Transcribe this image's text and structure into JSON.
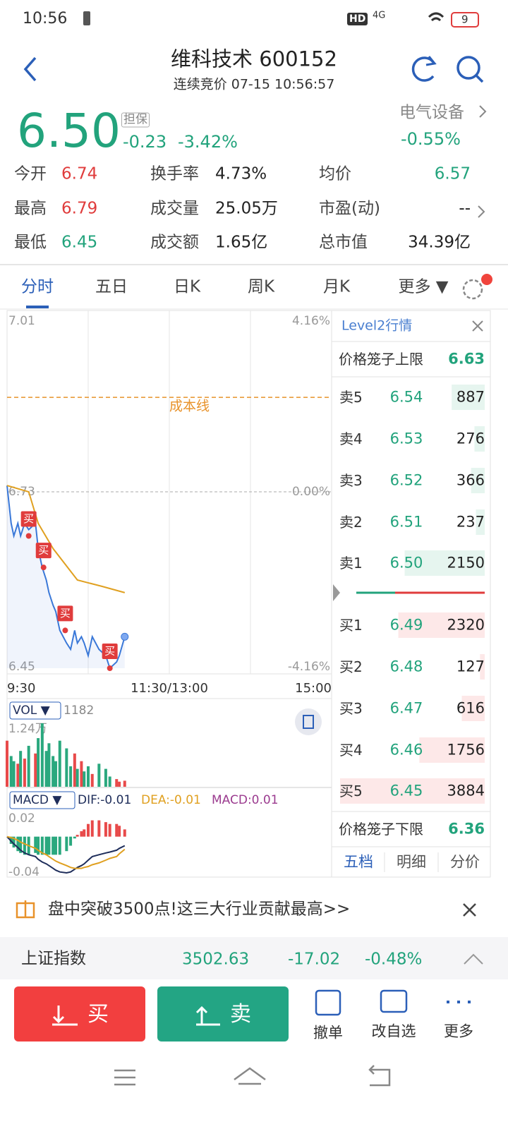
{
  "status_bar": {
    "time": "10:56",
    "hd": "HD",
    "network": "4G",
    "battery": "9"
  },
  "header": {
    "title": "维科技术 600152",
    "subtitle": "连续竞价 07-15 10:56:57"
  },
  "quote": {
    "price": "6.50",
    "badge": "担保",
    "change": "-0.23",
    "change_pct": "-3.42%",
    "sector": "电气设备",
    "sector_change": "-0.55%"
  },
  "stats": [
    [
      {
        "label": "今开",
        "value": "6.74",
        "color": "#e03c3c"
      },
      {
        "label": "换手率",
        "value": "4.73%"
      },
      {
        "label": "均价",
        "value": "6.57",
        "color": "#22a37c"
      }
    ],
    [
      {
        "label": "最高",
        "value": "6.79",
        "color": "#e03c3c"
      },
      {
        "label": "成交量",
        "value": "25.05万"
      },
      {
        "label": "市盈(动)",
        "value": "--"
      }
    ],
    [
      {
        "label": "最低",
        "value": "6.45",
        "color": "#22a37c"
      },
      {
        "label": "成交额",
        "value": "1.65亿"
      },
      {
        "label": "总市值",
        "value": "34.39亿"
      }
    ]
  ],
  "tabs": [
    "分时",
    "五日",
    "日K",
    "周K",
    "月K",
    "更多 ▼"
  ],
  "active_tab": 0,
  "chart_data": [
    {
      "type": "line",
      "xlim": [
        0,
        240
      ],
      "xticks": [
        {
          "value": 0,
          "label": "9:30"
        },
        {
          "value": 120,
          "label": "11:30/13:00"
        },
        {
          "value": 240,
          "label": "15:00"
        }
      ],
      "xgrid": [
        60,
        120,
        180
      ],
      "ylim": [
        6.45,
        7.01
      ],
      "yticks": [
        6.45,
        6.73,
        7.01
      ],
      "y2lim": [
        -4.16,
        4.16
      ],
      "y2ticks": [
        {
          "value": -4.16,
          "label": "-4.16%"
        },
        {
          "value": 0,
          "label": "0.00%"
        },
        {
          "value": 4.16,
          "label": "4.16%"
        }
      ],
      "series": [
        {
          "color": "#3a78d8",
          "x": [
            0,
            3,
            5,
            8,
            10,
            13,
            16,
            21,
            23,
            26,
            29,
            31,
            34,
            36,
            39,
            44,
            47,
            50,
            52,
            55,
            57,
            60,
            63,
            68,
            73,
            76,
            81,
            83,
            87
          ],
          "values": [
            6.74,
            6.68,
            6.66,
            6.68,
            6.66,
            6.68,
            6.67,
            6.68,
            6.64,
            6.61,
            6.59,
            6.57,
            6.55,
            6.54,
            6.51,
            6.49,
            6.48,
            6.51,
            6.49,
            6.5,
            6.49,
            6.47,
            6.5,
            6.48,
            6.47,
            6.45,
            6.46,
            6.47,
            6.5
          ]
        },
        {
          "color": "#e0a020",
          "x": [
            0,
            16,
            23,
            34,
            52,
            70,
            87
          ],
          "values": [
            6.74,
            6.73,
            6.68,
            6.64,
            6.59,
            6.58,
            6.57
          ]
        }
      ],
      "cost_line": {
        "label": "成本线",
        "value": 6.88,
        "color": "#e8922a"
      },
      "markers": [
        {
          "label": "买",
          "x": 16,
          "value": 6.66
        },
        {
          "label": "买",
          "x": 27,
          "value": 6.61
        },
        {
          "label": "买",
          "x": 43,
          "value": 6.51
        },
        {
          "label": "买",
          "x": 76,
          "value": 6.45
        }
      ]
    },
    {
      "type": "bar",
      "indicator": "VOL ▼",
      "current": 1182,
      "xlim": [
        0,
        240
      ],
      "ylim": [
        0,
        12400
      ],
      "yticks": [
        {
          "value": 12400,
          "label": "1.24万"
        }
      ],
      "up_color": "#e84a4a",
      "down_color": "#2aa87e",
      "x": [
        0,
        3,
        5,
        8,
        10,
        13,
        16,
        21,
        23,
        26,
        29,
        31,
        34,
        36,
        39,
        44,
        47,
        50,
        52,
        55,
        57,
        60,
        63,
        68,
        73,
        76,
        81,
        83,
        87
      ],
      "values": [
        9000,
        6000,
        5000,
        4500,
        7000,
        5500,
        8000,
        6500,
        9500,
        12400,
        7000,
        8500,
        6000,
        5000,
        9000,
        7500,
        4000,
        6500,
        3500,
        5000,
        3000,
        4000,
        2500,
        4500,
        3500,
        2000,
        1500,
        1000,
        1182
      ]
    },
    {
      "type": "macd",
      "indicator": "MACD ▼",
      "dif_label": "DIF:-0.01",
      "dea_label": "DEA:-0.01",
      "macd_label": "MACD:0.01",
      "xlim": [
        0,
        240
      ],
      "ylim": [
        -0.04,
        0.02
      ],
      "yticks": [
        0.02,
        -0.04
      ],
      "up_color": "#e84a4a",
      "down_color": "#2aa87e",
      "x": [
        0,
        3,
        5,
        8,
        10,
        13,
        16,
        21,
        23,
        26,
        29,
        31,
        34,
        36,
        39,
        44,
        47,
        50,
        52,
        55,
        57,
        60,
        63,
        68,
        73,
        76,
        81,
        83,
        87
      ],
      "series": [
        {
          "name": "DIF",
          "color": "#1e2d5a",
          "values": [
            0,
            -0.005,
            -0.008,
            -0.012,
            -0.015,
            -0.018,
            -0.02,
            -0.022,
            -0.025,
            -0.028,
            -0.03,
            -0.032,
            -0.035,
            -0.037,
            -0.039,
            -0.04,
            -0.039,
            -0.036,
            -0.034,
            -0.032,
            -0.03,
            -0.026,
            -0.022,
            -0.02,
            -0.018,
            -0.017,
            -0.015,
            -0.013,
            -0.01
          ]
        },
        {
          "name": "DEA",
          "color": "#e0a020",
          "values": [
            0,
            -0.001,
            -0.002,
            -0.004,
            -0.006,
            -0.008,
            -0.01,
            -0.013,
            -0.015,
            -0.018,
            -0.02,
            -0.022,
            -0.025,
            -0.027,
            -0.029,
            -0.032,
            -0.034,
            -0.035,
            -0.035,
            -0.035,
            -0.034,
            -0.033,
            -0.031,
            -0.029,
            -0.026,
            -0.024,
            -0.022,
            -0.019,
            -0.014
          ]
        }
      ],
      "histogram": [
        0,
        -0.008,
        -0.012,
        -0.016,
        -0.018,
        -0.02,
        -0.02,
        -0.018,
        -0.02,
        -0.02,
        -0.02,
        -0.02,
        -0.02,
        -0.02,
        -0.02,
        -0.016,
        -0.01,
        -0.002,
        0.002,
        0.006,
        0.008,
        0.014,
        0.018,
        0.018,
        0.016,
        0.014,
        0.014,
        0.012,
        0.008
      ]
    }
  ],
  "order_book": {
    "title": "Level2行情",
    "upper_label": "价格笼子上限",
    "upper": "6.63",
    "asks": [
      {
        "label": "卖5",
        "price": "6.54",
        "volume": 887
      },
      {
        "label": "卖4",
        "price": "6.53",
        "volume": 276
      },
      {
        "label": "卖3",
        "price": "6.52",
        "volume": 366
      },
      {
        "label": "卖2",
        "price": "6.51",
        "volume": 237
      },
      {
        "label": "卖1",
        "price": "6.50",
        "volume": 2150
      }
    ],
    "bids": [
      {
        "label": "买1",
        "price": "6.49",
        "volume": 2320
      },
      {
        "label": "买2",
        "price": "6.48",
        "volume": 127
      },
      {
        "label": "买3",
        "price": "6.47",
        "volume": 616
      },
      {
        "label": "买4",
        "price": "6.46",
        "volume": 1756
      },
      {
        "label": "买5",
        "price": "6.45",
        "volume": 3884
      }
    ],
    "lower_label": "价格笼子下限",
    "lower": "6.36",
    "tabs": [
      "五档",
      "明细",
      "分价"
    ]
  },
  "banner": {
    "text": "盘中突破3500点!这三大行业贡献最高>>"
  },
  "index": {
    "name": "上证指数",
    "value": "3502.63",
    "change": "-17.02",
    "change_pct": "-0.48%"
  },
  "actions": {
    "buy": "买",
    "sell": "卖",
    "items": [
      "撤单",
      "改自选",
      "更多"
    ]
  }
}
